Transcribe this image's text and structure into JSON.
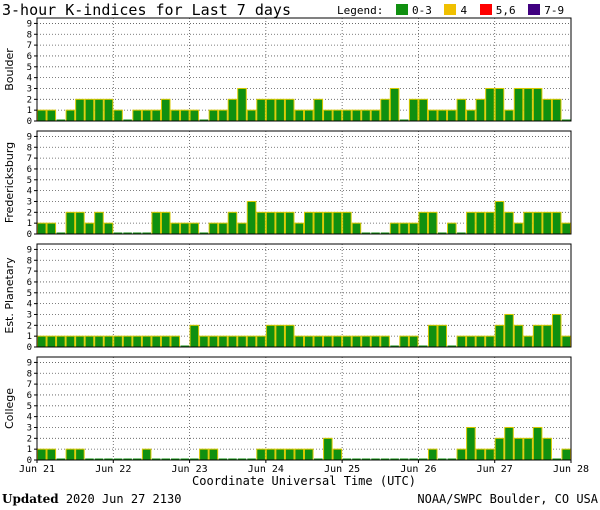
{
  "title": "3-hour K-indices for Last 7 days",
  "legend": {
    "label": "Legend:",
    "items": [
      {
        "label": "0-3",
        "color": "#109010"
      },
      {
        "label": "4",
        "color": "#f0c000"
      },
      {
        "label": "5,6",
        "color": "#ff0000"
      },
      {
        "label": "7-9",
        "color": "#400080"
      }
    ]
  },
  "footer": {
    "updated_label": "Updated",
    "updated_value": "2020 Jun 27 2130",
    "source": "NOAA/SWPC Boulder, CO USA"
  },
  "chart_data": {
    "type": "bar",
    "xlabel": "Coordinate Universal Time (UTC)",
    "x_ticks": [
      "Jun 21",
      "Jun 22",
      "Jun 23",
      "Jun 24",
      "Jun 25",
      "Jun 26",
      "Jun 27",
      "Jun 28"
    ],
    "ylim": [
      0,
      9
    ],
    "y_ticks": [
      "0",
      "1",
      "2",
      "3",
      "4",
      "5",
      "6",
      "7",
      "8",
      "9"
    ],
    "bar_color": "#109010",
    "bar_edge_color": "#d8c800",
    "grid": true,
    "panels": [
      {
        "name": "Boulder",
        "values": [
          1,
          1,
          0,
          1,
          2,
          2,
          2,
          2,
          1,
          0,
          1,
          1,
          1,
          2,
          1,
          1,
          1,
          0,
          1,
          1,
          2,
          3,
          1,
          2,
          2,
          2,
          2,
          1,
          1,
          2,
          1,
          1,
          1,
          1,
          1,
          1,
          2,
          3,
          0,
          2,
          2,
          1,
          1,
          1,
          2,
          1,
          2,
          3,
          3,
          1,
          3,
          3,
          3,
          2,
          2,
          0
        ]
      },
      {
        "name": "Fredericksburg",
        "values": [
          1,
          1,
          0,
          2,
          2,
          1,
          2,
          1,
          0,
          0,
          0,
          0,
          2,
          2,
          1,
          1,
          1,
          0,
          1,
          1,
          2,
          1,
          3,
          2,
          2,
          2,
          2,
          1,
          2,
          2,
          2,
          2,
          2,
          1,
          0,
          0,
          0,
          1,
          1,
          1,
          2,
          2,
          0,
          1,
          0,
          2,
          2,
          2,
          3,
          2,
          1,
          2,
          2,
          2,
          2,
          1,
          0
        ]
      },
      {
        "name": "Est. Planetary",
        "values": [
          1,
          1,
          1,
          1,
          1,
          1,
          1,
          1,
          1,
          1,
          1,
          1,
          1,
          1,
          1,
          0,
          2,
          1,
          1,
          1,
          1,
          1,
          1,
          1,
          2,
          2,
          2,
          1,
          1,
          1,
          1,
          1,
          1,
          1,
          1,
          1,
          1,
          0,
          1,
          1,
          0,
          2,
          2,
          0,
          1,
          1,
          1,
          1,
          2,
          3,
          2,
          1,
          2,
          2,
          3,
          1,
          1
        ]
      },
      {
        "name": "College",
        "values": [
          1,
          1,
          0,
          1,
          1,
          0,
          0,
          0,
          0,
          0,
          0,
          1,
          0,
          0,
          0,
          0,
          0,
          1,
          1,
          0,
          0,
          0,
          0,
          1,
          1,
          1,
          1,
          1,
          1,
          0,
          2,
          1,
          0,
          0,
          0,
          0,
          0,
          0,
          0,
          0,
          0,
          1,
          0,
          0,
          1,
          3,
          1,
          1,
          2,
          3,
          2,
          2,
          3,
          2,
          0,
          1,
          0
        ]
      }
    ]
  }
}
